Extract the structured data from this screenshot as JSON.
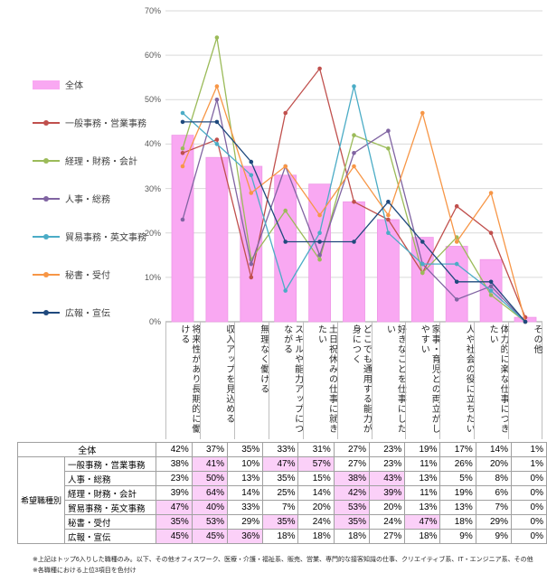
{
  "chart_data": {
    "type": "bar+line",
    "title": "",
    "xlabel": "",
    "ylabel": "",
    "ylim": [
      0,
      70
    ],
    "grid": true,
    "legend_position": "left",
    "ytick_labels": [
      "0%",
      "10%",
      "20%",
      "30%",
      "40%",
      "50%",
      "60%",
      "70%"
    ],
    "categories": [
      "将来性があり長期的に働ける",
      "収入アップを見込める",
      "無理なく働ける",
      "スキルや能力アップにつながる",
      "土日祝休みの仕事に就きたい",
      "どこでも通用する能力が身につく",
      "好きなことを仕事にしたい",
      "家事・育児との両立がしやすい",
      "人や社会の役に立ちたい",
      "体力的に楽な仕事につきたい",
      "その他"
    ],
    "bar_series": {
      "name": "全体",
      "color": "#F9A8F2",
      "border_color": "#EE97E6",
      "values": [
        42,
        37,
        35,
        33,
        31,
        27,
        23,
        19,
        17,
        14,
        1
      ]
    },
    "line_series": [
      {
        "name": "一般事務・営業事務",
        "color": "#C0504D",
        "values": [
          38,
          41,
          10,
          47,
          57,
          27,
          23,
          11,
          26,
          20,
          1
        ]
      },
      {
        "name": "経理・財務・会計",
        "color": "#9BBB59",
        "values": [
          39,
          64,
          14,
          25,
          14,
          42,
          39,
          11,
          19,
          6,
          0
        ]
      },
      {
        "name": "人事・総務",
        "color": "#8064A2",
        "values": [
          23,
          50,
          13,
          35,
          15,
          38,
          43,
          13,
          5,
          8,
          0
        ]
      },
      {
        "name": "貿易事務・英文事務",
        "color": "#4BACC6",
        "values": [
          47,
          40,
          33,
          7,
          20,
          53,
          20,
          13,
          13,
          7,
          0
        ]
      },
      {
        "name": "秘書・受付",
        "color": "#F79646",
        "values": [
          35,
          53,
          29,
          35,
          24,
          35,
          24,
          47,
          18,
          29,
          0
        ]
      },
      {
        "name": "広報・宣伝",
        "color": "#1F497D",
        "values": [
          45,
          45,
          36,
          18,
          18,
          18,
          27,
          18,
          9,
          9,
          0
        ]
      }
    ]
  },
  "table": {
    "row_group_label": "希望職種別",
    "overall_row": {
      "label": "全体",
      "values": [
        "42%",
        "37%",
        "35%",
        "33%",
        "31%",
        "27%",
        "23%",
        "19%",
        "17%",
        "14%",
        "1%"
      ]
    },
    "rows": [
      {
        "label": "一般事務・営業事務",
        "values": [
          "38%",
          "41%",
          "10%",
          "47%",
          "57%",
          "27%",
          "23%",
          "11%",
          "26%",
          "20%",
          "1%"
        ],
        "highlighted": [
          1,
          3,
          4
        ]
      },
      {
        "label": "人事・総務",
        "values": [
          "23%",
          "50%",
          "13%",
          "35%",
          "15%",
          "38%",
          "43%",
          "13%",
          "5%",
          "8%",
          "0%"
        ],
        "highlighted": [
          1,
          5,
          6
        ]
      },
      {
        "label": "経理・財務・会計",
        "values": [
          "39%",
          "64%",
          "14%",
          "25%",
          "14%",
          "42%",
          "39%",
          "11%",
          "19%",
          "6%",
          "0%"
        ],
        "highlighted": [
          1,
          5,
          6
        ]
      },
      {
        "label": "貿易事務・英文事務",
        "values": [
          "47%",
          "40%",
          "33%",
          "7%",
          "20%",
          "53%",
          "20%",
          "13%",
          "13%",
          "7%",
          "0%"
        ],
        "highlighted": [
          0,
          1,
          5
        ]
      },
      {
        "label": "秘書・受付",
        "values": [
          "35%",
          "53%",
          "29%",
          "35%",
          "24%",
          "35%",
          "24%",
          "47%",
          "18%",
          "29%",
          "0%"
        ],
        "highlighted": [
          0,
          1,
          3,
          5,
          7
        ]
      },
      {
        "label": "広報・宣伝",
        "values": [
          "45%",
          "45%",
          "36%",
          "18%",
          "18%",
          "18%",
          "27%",
          "18%",
          "9%",
          "9%",
          "0%"
        ],
        "highlighted": [
          0,
          1,
          2
        ]
      }
    ],
    "highlight_color": "#FBD0F8"
  },
  "footnotes": [
    "※上記はトップ6入りした職種のみ。以下、その他オフィスワーク、医療・介護・福祉系、販売、営業、専門的な接客知識の仕事、クリエイティブ系、IT・エンジニア系、その他",
    "※各職種における上位3項目を色付け"
  ]
}
